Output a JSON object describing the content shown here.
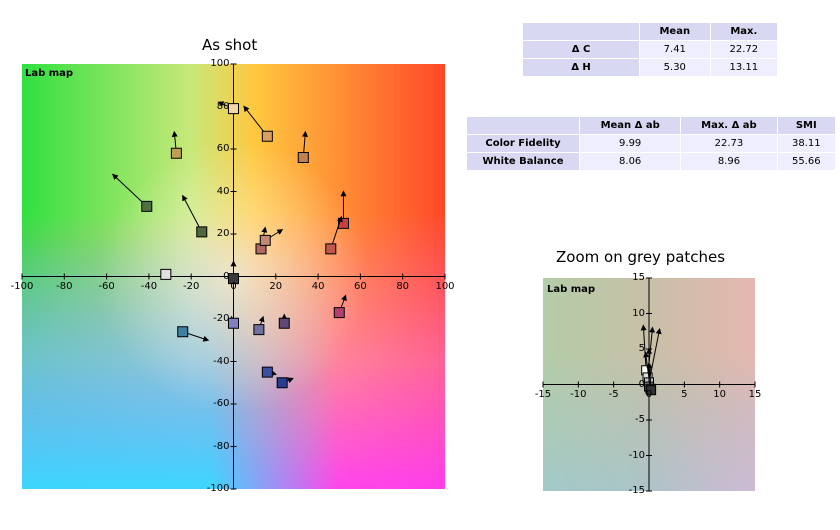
{
  "main_chart": {
    "title": "As shot",
    "map_label": "Lab map",
    "x_ticks": [
      "-100",
      "-80",
      "-60",
      "-40",
      "-20",
      "0",
      "20",
      "40",
      "60",
      "80",
      "100"
    ],
    "y_ticks": [
      "100",
      "80",
      "60",
      "40",
      "20",
      "0",
      "-20",
      "-40",
      "-60",
      "-80",
      "-100"
    ]
  },
  "zoom_chart": {
    "title": "Zoom on grey patches",
    "map_label": "Lab map",
    "x_ticks": [
      "-15",
      "-10",
      "-5",
      "0",
      "5",
      "10",
      "15"
    ],
    "y_ticks": [
      "15",
      "10",
      "5",
      "0",
      "-5",
      "-10",
      "-15"
    ]
  },
  "delta_table": {
    "headers": [
      "",
      "Mean",
      "Max."
    ],
    "rows": [
      [
        "Δ C",
        "7.41",
        "22.72"
      ],
      [
        "Δ H",
        "5.30",
        "13.11"
      ]
    ]
  },
  "fidelity_table": {
    "headers": [
      "",
      "Mean Δ ab",
      "Max. Δ ab",
      "SMI"
    ],
    "rows": [
      [
        "Color Fidelity",
        "9.99",
        "22.73",
        "38.11"
      ],
      [
        "White Balance",
        "8.06",
        "8.96",
        "55.66"
      ]
    ]
  },
  "chart_data": [
    {
      "type": "scatter",
      "title": "As shot",
      "xlim": [
        -100,
        100
      ],
      "ylim": [
        -100,
        100
      ],
      "grid": false,
      "patches": [
        {
          "color": "#f3d8a8",
          "x": 0,
          "y": 79,
          "ref_x": -7,
          "ref_y": 82
        },
        {
          "color": "#d8a060",
          "x": 16,
          "y": 66,
          "ref_x": 5,
          "ref_y": 80
        },
        {
          "color": "#c0a050",
          "x": -27,
          "y": 58,
          "ref_x": -28,
          "ref_y": 68
        },
        {
          "color": "#c08050",
          "x": 33,
          "y": 56,
          "ref_x": 34,
          "ref_y": 68
        },
        {
          "color": "#507040",
          "x": -41,
          "y": 33,
          "ref_x": -57,
          "ref_y": 48
        },
        {
          "color": "#506840",
          "x": -15,
          "y": 21,
          "ref_x": -24,
          "ref_y": 38
        },
        {
          "color": "#b06860",
          "x": 13,
          "y": 13,
          "ref_x": 15,
          "ref_y": 23
        },
        {
          "color": "#c08a78",
          "x": 15,
          "y": 17,
          "ref_x": 23,
          "ref_y": 22
        },
        {
          "color": "#c84040",
          "x": 52,
          "y": 25,
          "ref_x": 52,
          "ref_y": 40
        },
        {
          "color": "#c05850",
          "x": 46,
          "y": 13,
          "ref_x": 51,
          "ref_y": 28
        },
        {
          "color": "#3a3a3a",
          "x": 0,
          "y": -1,
          "ref_x": 0,
          "ref_y": 7
        },
        {
          "color": "#e0e0e0",
          "x": -32,
          "y": 1,
          "ref_x": -30,
          "ref_y": 3
        },
        {
          "color": "#b04070",
          "x": 50,
          "y": -17,
          "ref_x": 53,
          "ref_y": -9
        },
        {
          "color": "#8080c0",
          "x": 0,
          "y": -22,
          "ref_x": -1,
          "ref_y": -19
        },
        {
          "color": "#4080a0",
          "x": -24,
          "y": -26,
          "ref_x": -12,
          "ref_y": -30
        },
        {
          "color": "#7070a0",
          "x": 12,
          "y": -25,
          "ref_x": 14,
          "ref_y": -19
        },
        {
          "color": "#604878",
          "x": 24,
          "y": -22,
          "ref_x": 24,
          "ref_y": -18
        },
        {
          "color": "#3850a0",
          "x": 16,
          "y": -45,
          "ref_x": 20,
          "ref_y": -46
        },
        {
          "color": "#283c90",
          "x": 23,
          "y": -50,
          "ref_x": 28,
          "ref_y": -48
        }
      ]
    },
    {
      "type": "scatter",
      "title": "Zoom on grey patches",
      "xlim": [
        -15,
        15
      ],
      "ylim": [
        -15,
        15
      ],
      "grid": false,
      "patches": [
        {
          "color": "#ffffff",
          "x": -0.4,
          "y": 2.0,
          "ref_x": -0.8,
          "ref_y": 8.3
        },
        {
          "color": "#dddddd",
          "x": -0.2,
          "y": 1.0,
          "ref_x": 0.5,
          "ref_y": 8.0
        },
        {
          "color": "#bbbbbb",
          "x": 0.0,
          "y": 0.3,
          "ref_x": 1.5,
          "ref_y": 7.8
        },
        {
          "color": "#888888",
          "x": 0.0,
          "y": -0.3,
          "ref_x": 0.0,
          "ref_y": 5.0
        },
        {
          "color": "#555555",
          "x": 0.2,
          "y": -0.6,
          "ref_x": -0.5,
          "ref_y": 4.5
        },
        {
          "color": "#333333",
          "x": 0.3,
          "y": -0.8,
          "ref_x": 0.0,
          "ref_y": 3.0
        }
      ]
    }
  ]
}
